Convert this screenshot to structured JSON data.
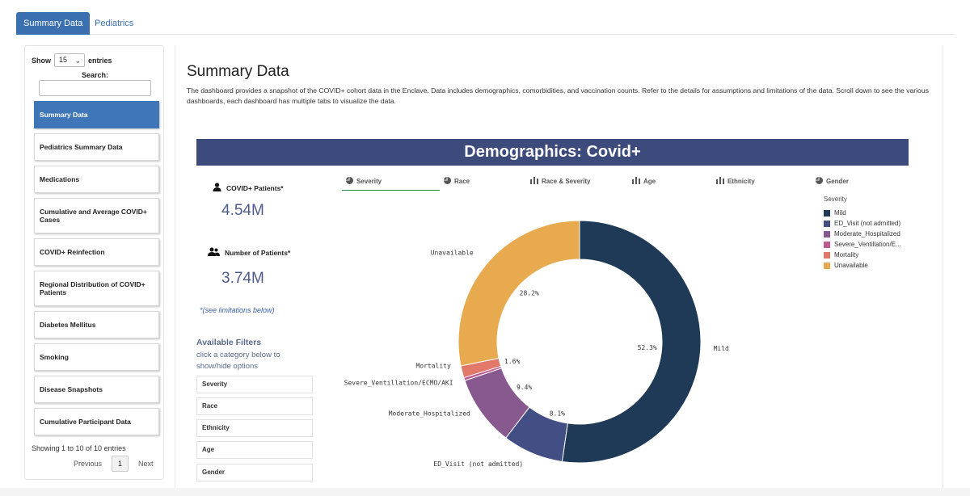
{
  "top_tabs": [
    {
      "label": "Summary Data",
      "active": true
    },
    {
      "label": "Pediatrics",
      "active": false
    }
  ],
  "sidebar": {
    "show_label": "Show",
    "show_value": "15",
    "entries_label": "entries",
    "search_label": "Search:",
    "search_value": "",
    "items": [
      {
        "label": "Summary Data",
        "active": true
      },
      {
        "label": "Pediatrics Summary Data"
      },
      {
        "label": "Medications"
      },
      {
        "label": "Cumulative and Average COVID+ Cases"
      },
      {
        "label": "COVID+ Reinfection"
      },
      {
        "label": "Regional Distribution of COVID+ Patients"
      },
      {
        "label": "Diabetes Mellitus"
      },
      {
        "label": "Smoking"
      },
      {
        "label": "Disease Snapshots"
      },
      {
        "label": "Cumulative Participant Data"
      }
    ],
    "info": "Showing 1 to 10 of 10 entries",
    "prev_label": "Previous",
    "page_number": "1",
    "next_label": "Next"
  },
  "main": {
    "title": "Summary Data",
    "description": "The dashboard provides a snapshot of the COVID+ cohort data in the Enclave. Data includes demographics, comorbidities, and vaccination counts. Refer to the details for assumptions and limitations of the data. Scroll down to see the various dashboards, each dashboard has multiple tabs to visualize the data.",
    "banner": "Demographics: Covid+",
    "kpis": [
      {
        "label": "COVID+ Patients*",
        "value": "4.54M",
        "icon": "person-icon"
      },
      {
        "label": "Number of Patients*",
        "value": "3.74M",
        "icon": "people-icon"
      }
    ],
    "limitations_note": "*(see limitations below)",
    "filters_title": "Available Filters",
    "filters_hint": "click a category below to show/hide options",
    "filters": [
      "Severity",
      "Race",
      "Ethnicity",
      "Age",
      "Gender"
    ],
    "chart_tabs": [
      {
        "label": "Severity",
        "icon": "pie-icon",
        "active": true
      },
      {
        "label": "Race",
        "icon": "pie-icon"
      },
      {
        "label": "Race & Severity",
        "icon": "bar-icon"
      },
      {
        "label": "Age",
        "icon": "bar-icon"
      },
      {
        "label": "Ethnicity",
        "icon": "bar-icon"
      },
      {
        "label": "Gender",
        "icon": "pie-icon"
      }
    ]
  },
  "chart_data": {
    "type": "pie",
    "title": "",
    "legend_title": "Severity",
    "legend_position": "right",
    "categories": [
      "Mild",
      "ED_Visit (not admitted)",
      "Moderate_Hospitalized",
      "Severe_Ventillation/ECMO/AKI",
      "Mortality",
      "Unavailable"
    ],
    "legend_labels": [
      "Mild",
      "ED_Visit (not admitted)",
      "Moderate_Hospitalized",
      "Severe_Ventillation/E...",
      "Mortality",
      "Unavailable"
    ],
    "values": [
      52.3,
      8.1,
      9.4,
      0.4,
      1.6,
      28.2
    ],
    "value_labels": [
      "52.3%",
      "8.1%",
      "9.4%",
      "",
      "1.6%",
      "28.2%"
    ],
    "colors": [
      "#1f3a56",
      "#434f84",
      "#87598f",
      "#c05b91",
      "#e2786a",
      "#e8aa4f"
    ]
  }
}
